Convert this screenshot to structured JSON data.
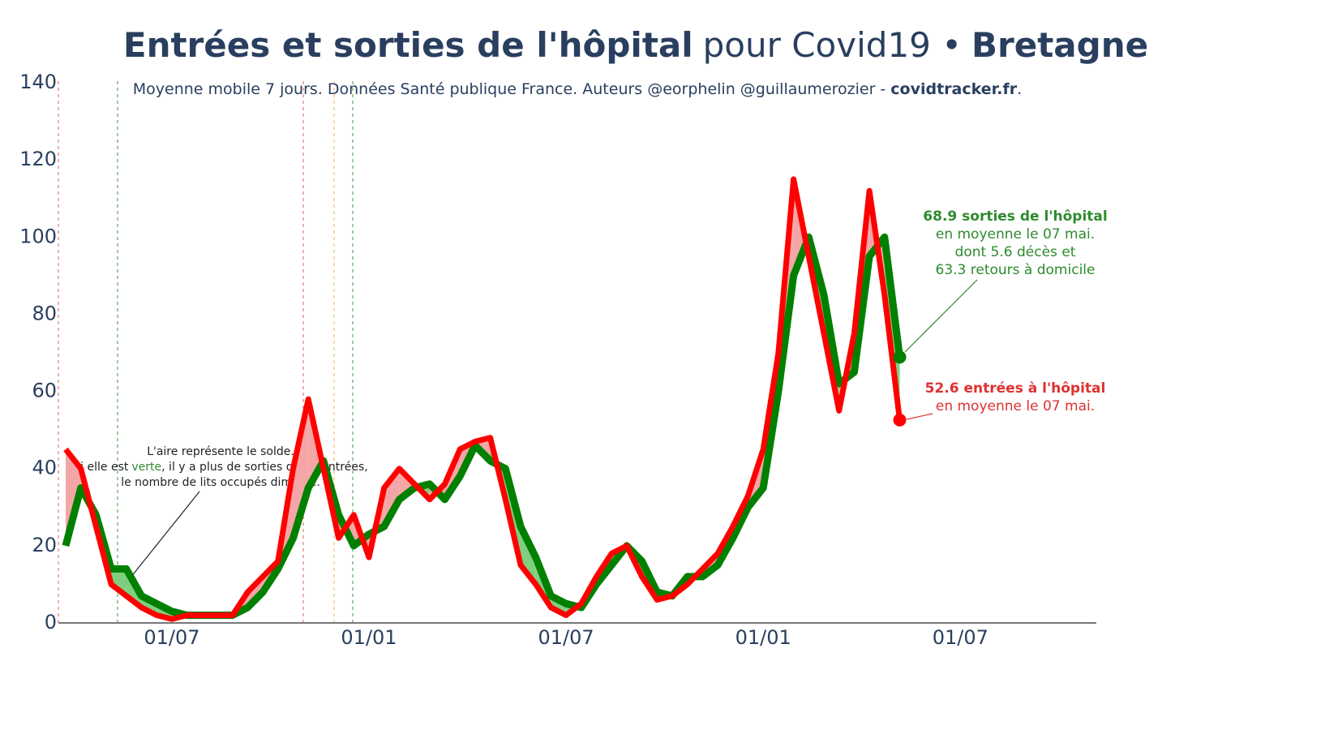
{
  "chart_data": {
    "type": "line",
    "title": [
      "Entrées et sorties de l'hôpital",
      "pour Covid19 •",
      "Bretagne"
    ],
    "subtitle": [
      "Moyenne mobile 7 jours. Données Santé publique France. Auteurs @eorphelin @guillaumerozier -",
      "covidtracker.fr",
      "."
    ],
    "categories": [
      null,
      null,
      null,
      null,
      null,
      null,
      null,
      "01/07",
      null,
      null,
      null,
      null,
      null,
      null,
      null,
      null,
      null,
      null,
      null,
      null,
      "01/01",
      null,
      null,
      null,
      null,
      null,
      null,
      null,
      null,
      null,
      null,
      null,
      null,
      "01/07",
      null,
      null,
      null,
      null,
      null,
      null,
      null,
      null,
      null,
      null,
      null,
      null,
      "01/01",
      null,
      null,
      null,
      null,
      null,
      null,
      null,
      null,
      null,
      null,
      null,
      null,
      "01/07",
      null,
      null,
      null,
      null,
      null,
      null,
      null,
      null,
      null
    ],
    "series": [
      {
        "color": "#008000",
        "fill": "#7fcf7f",
        "values": [
          20,
          35,
          28,
          14,
          14,
          7,
          5,
          3,
          2,
          2,
          2,
          2,
          4,
          8,
          14,
          22,
          35,
          42,
          28,
          20,
          23,
          25,
          32,
          35,
          36,
          32,
          38,
          46,
          42,
          40,
          25,
          17,
          7,
          5,
          4,
          10,
          15,
          20,
          16,
          8,
          7,
          12,
          12,
          15,
          22,
          30,
          35,
          60,
          90,
          100,
          85,
          62,
          65,
          95,
          100,
          68.9,
          null,
          null,
          null,
          null,
          null,
          null,
          null,
          null,
          null,
          null,
          null,
          null,
          null
        ]
      },
      {
        "color": "#ff0000",
        "fill": "#f4a6a6",
        "values": [
          45,
          40,
          25,
          10,
          7,
          4,
          2,
          1,
          2,
          2,
          2,
          2,
          8,
          12,
          16,
          40,
          58,
          40,
          22,
          28,
          17,
          35,
          40,
          36,
          32,
          36,
          45,
          47,
          48,
          32,
          15,
          10,
          4,
          2,
          5,
          12,
          18,
          20,
          12,
          6,
          7,
          10,
          14,
          18,
          25,
          33,
          45,
          70,
          115,
          95,
          75,
          55,
          75,
          112,
          85,
          52.6,
          null,
          null,
          null,
          null,
          null,
          null,
          null,
          null,
          null,
          null,
          null,
          null,
          null
        ]
      }
    ],
    "ylim": [
      0,
      140
    ],
    "yticks": [
      0,
      20,
      40,
      60,
      80,
      100,
      120,
      140
    ],
    "annotations": {
      "green": [
        "68.9 sorties de l'hôpital",
        "en moyenne le 07 mai.",
        "dont 5.6 décès et",
        "63.3 retours à domicile"
      ],
      "red": [
        "52.6 entrées à l'hôpital",
        "en moyenne le 07 mai."
      ],
      "note": [
        "L'aire représente le solde.",
        "Si elle est",
        "verte",
        ", il y a plus de sorties que d'entrées,",
        "le nombre de lits occupés diminue."
      ]
    }
  }
}
